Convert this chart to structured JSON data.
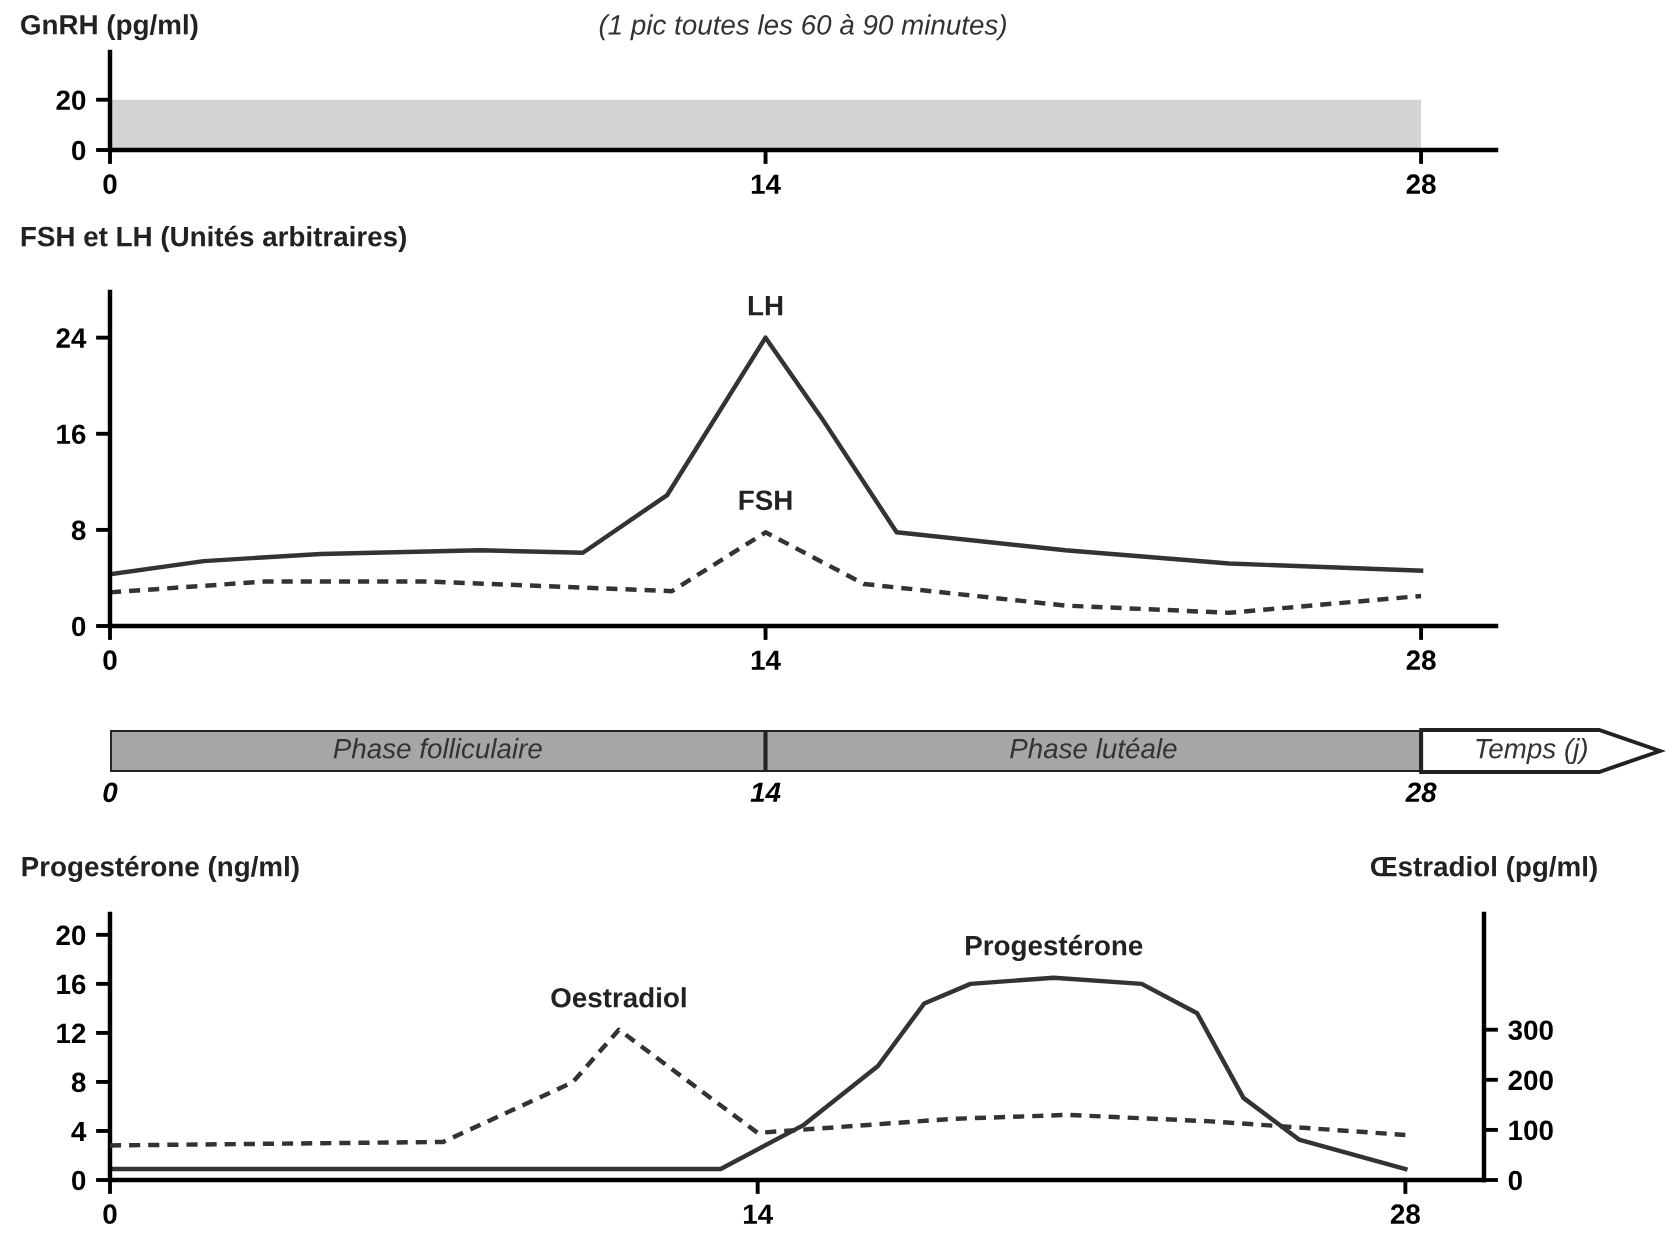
{
  "chart_data": [
    {
      "type": "area",
      "ylabel": "GnRH (pg/ml)",
      "annotations": [
        "(1 pic toutes les 60 à 90 minutes)"
      ],
      "xlim": [
        0,
        29.6
      ],
      "xticks": [
        0,
        14,
        28
      ],
      "ylim": [
        0,
        39
      ],
      "yticks": [
        0,
        20
      ],
      "series": [
        {
          "color": "#d4d4d4",
          "x": [
            0,
            28
          ],
          "values": [
            20,
            20
          ]
        }
      ]
    },
    {
      "type": "line",
      "ylabel": "FSH et LH (Unités arbitraires)",
      "xlim": [
        0,
        29.6
      ],
      "xticks": [
        0,
        14,
        28
      ],
      "ylim": [
        0,
        27.8
      ],
      "yticks": [
        0,
        8,
        16,
        24
      ],
      "series": [
        {
          "name": "LH",
          "color": "#333333",
          "line_style": "solid",
          "x": [
            0,
            2,
            4.5,
            7.9,
            10.1,
            11.9,
            14,
            15.2,
            16.8,
            20.4,
            23.9,
            28
          ],
          "values": [
            4.3,
            5.4,
            6.0,
            6.3,
            6.1,
            10.9,
            24,
            17.3,
            7.8,
            6.3,
            5.2,
            4.6
          ]
        },
        {
          "name": "FSH",
          "color": "#333333",
          "line_style": "dashed",
          "x": [
            0,
            3.3,
            6.8,
            12,
            14,
            16.1,
            20.4,
            23.9,
            28
          ],
          "values": [
            2.8,
            3.7,
            3.7,
            2.9,
            7.8,
            3.5,
            1.7,
            1.1,
            2.5
          ]
        }
      ]
    },
    {
      "type": "bar",
      "orientation": "horizontal",
      "categories": [
        null
      ],
      "xlim": [
        0,
        33.1
      ],
      "xticks": [
        0,
        14,
        28
      ],
      "annotations": [
        "Temps (j)"
      ],
      "series": [
        {
          "color": "#a6a6a6",
          "base": [
            0
          ],
          "values": [
            14
          ],
          "value_labels": [
            "Phase folliculaire"
          ]
        },
        {
          "color": "#a6a6a6",
          "base": [
            14
          ],
          "values": [
            14
          ],
          "value_labels": [
            "Phase lutéale"
          ]
        }
      ]
    },
    {
      "type": "line",
      "ylabel": "Progestérone (ng/ml)",
      "y2label": "Œstradiol (pg/ml)",
      "xlim": [
        0,
        29.7
      ],
      "xticks": [
        0,
        14,
        28
      ],
      "ylim": [
        0,
        21.7
      ],
      "yticks": [
        0,
        4,
        8,
        12,
        16,
        20
      ],
      "y2lim": [
        0,
        531
      ],
      "y2ticks": [
        0,
        100,
        200,
        300
      ],
      "series": [
        {
          "name": "Progestérone",
          "color": "#333333",
          "line_style": "solid",
          "x": [
            0,
            13.2,
            15,
            16.6,
            17.6,
            18.6,
            20.4,
            22.3,
            23.5,
            24.5,
            25.7,
            28
          ],
          "values": [
            0.9,
            0.9,
            4.5,
            9.3,
            14.4,
            16.0,
            16.5,
            16.0,
            13.6,
            6.7,
            3.3,
            0.9
          ]
        },
        {
          "name": "Oestradiol",
          "axis": "y2",
          "color": "#333333",
          "line_style": "dashed",
          "x": [
            0,
            7.2,
            10,
            11,
            14,
            18.2,
            20.7,
            23.8,
            28
          ],
          "values": [
            69,
            76,
            195,
            300,
            94,
            122,
            130,
            117,
            90
          ]
        }
      ]
    }
  ]
}
